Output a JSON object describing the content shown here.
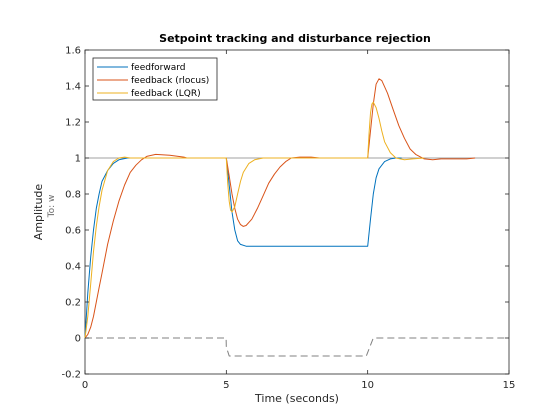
{
  "chart_data": {
    "type": "line",
    "title": "Setpoint tracking and disturbance rejection",
    "xlabel": "Time (seconds)",
    "ylabel": "Amplitude",
    "ylabel_sub": "To: w",
    "xlim": [
      0,
      15
    ],
    "ylim": [
      -0.2,
      1.6
    ],
    "xticks": [
      0,
      5,
      10,
      15
    ],
    "yticks": [
      -0.2,
      0,
      0.2,
      0.4,
      0.6,
      0.8,
      1,
      1.2,
      1.4,
      1.6
    ],
    "grid": false,
    "legend_position": "top-left",
    "reference_lines": [
      {
        "y": 1.0,
        "color": "#a0a0a0",
        "style": "solid"
      }
    ],
    "series": [
      {
        "name": "feedforward",
        "color": "#0072bd",
        "points": [
          [
            0,
            0
          ],
          [
            0.1,
            0.25
          ],
          [
            0.2,
            0.45
          ],
          [
            0.3,
            0.6
          ],
          [
            0.4,
            0.72
          ],
          [
            0.5,
            0.8
          ],
          [
            0.6,
            0.87
          ],
          [
            0.8,
            0.93
          ],
          [
            1.0,
            0.97
          ],
          [
            1.2,
            0.99
          ],
          [
            1.5,
            1.0
          ],
          [
            2.0,
            1.0
          ],
          [
            3.0,
            1.0
          ],
          [
            4.99,
            1.0
          ],
          [
            5.0,
            1.0
          ],
          [
            5.1,
            0.85
          ],
          [
            5.2,
            0.7
          ],
          [
            5.3,
            0.6
          ],
          [
            5.4,
            0.54
          ],
          [
            5.5,
            0.52
          ],
          [
            5.7,
            0.51
          ],
          [
            6.5,
            0.51
          ],
          [
            8.0,
            0.51
          ],
          [
            9.99,
            0.51
          ],
          [
            10.0,
            0.51
          ],
          [
            10.1,
            0.66
          ],
          [
            10.2,
            0.8
          ],
          [
            10.3,
            0.89
          ],
          [
            10.4,
            0.94
          ],
          [
            10.6,
            0.98
          ],
          [
            10.8,
            0.995
          ],
          [
            11.0,
            1.0
          ],
          [
            11.2,
            1.0
          ]
        ]
      },
      {
        "name": "feedback (rlocus)",
        "color": "#d95319",
        "points": [
          [
            0,
            0
          ],
          [
            0.1,
            0.02
          ],
          [
            0.2,
            0.06
          ],
          [
            0.3,
            0.12
          ],
          [
            0.4,
            0.2
          ],
          [
            0.5,
            0.28
          ],
          [
            0.6,
            0.36
          ],
          [
            0.8,
            0.52
          ],
          [
            1.0,
            0.65
          ],
          [
            1.2,
            0.76
          ],
          [
            1.4,
            0.85
          ],
          [
            1.6,
            0.92
          ],
          [
            1.8,
            0.96
          ],
          [
            2.0,
            0.99
          ],
          [
            2.2,
            1.01
          ],
          [
            2.5,
            1.02
          ],
          [
            3.0,
            1.015
          ],
          [
            3.5,
            1.005
          ],
          [
            3.6,
            1.0
          ],
          [
            5.0,
            1.0
          ],
          [
            5.1,
            0.9
          ],
          [
            5.2,
            0.8
          ],
          [
            5.3,
            0.72
          ],
          [
            5.4,
            0.66
          ],
          [
            5.5,
            0.63
          ],
          [
            5.6,
            0.62
          ],
          [
            5.7,
            0.625
          ],
          [
            5.9,
            0.66
          ],
          [
            6.1,
            0.72
          ],
          [
            6.3,
            0.79
          ],
          [
            6.5,
            0.86
          ],
          [
            6.7,
            0.91
          ],
          [
            6.9,
            0.95
          ],
          [
            7.1,
            0.98
          ],
          [
            7.3,
            1.0
          ],
          [
            7.6,
            1.005
          ],
          [
            8.0,
            1.005
          ],
          [
            8.3,
            1.0
          ],
          [
            10.0,
            1.0
          ],
          [
            10.1,
            1.15
          ],
          [
            10.2,
            1.3
          ],
          [
            10.3,
            1.41
          ],
          [
            10.4,
            1.44
          ],
          [
            10.5,
            1.43
          ],
          [
            10.7,
            1.36
          ],
          [
            10.9,
            1.27
          ],
          [
            11.1,
            1.18
          ],
          [
            11.3,
            1.11
          ],
          [
            11.5,
            1.05
          ],
          [
            11.7,
            1.02
          ],
          [
            12.0,
            0.995
          ],
          [
            12.3,
            0.99
          ],
          [
            12.6,
            0.995
          ],
          [
            13.0,
            0.995
          ],
          [
            13.5,
            0.995
          ],
          [
            13.8,
            1.0
          ]
        ]
      },
      {
        "name": "feedback (LQR)",
        "color": "#edb120",
        "points": [
          [
            0,
            0
          ],
          [
            0.1,
            0.12
          ],
          [
            0.2,
            0.3
          ],
          [
            0.3,
            0.48
          ],
          [
            0.4,
            0.62
          ],
          [
            0.5,
            0.73
          ],
          [
            0.6,
            0.82
          ],
          [
            0.8,
            0.93
          ],
          [
            1.0,
            0.98
          ],
          [
            1.2,
            1.0
          ],
          [
            1.4,
            1.005
          ],
          [
            1.6,
            1.0
          ],
          [
            5.0,
            1.0
          ],
          [
            5.05,
            0.86
          ],
          [
            5.1,
            0.76
          ],
          [
            5.15,
            0.71
          ],
          [
            5.2,
            0.7
          ],
          [
            5.3,
            0.73
          ],
          [
            5.4,
            0.8
          ],
          [
            5.5,
            0.87
          ],
          [
            5.6,
            0.92
          ],
          [
            5.8,
            0.97
          ],
          [
            6.0,
            0.99
          ],
          [
            6.3,
            1.0
          ],
          [
            6.6,
            1.0
          ],
          [
            10.0,
            1.0
          ],
          [
            10.05,
            1.14
          ],
          [
            10.1,
            1.25
          ],
          [
            10.15,
            1.3
          ],
          [
            10.2,
            1.31
          ],
          [
            10.3,
            1.28
          ],
          [
            10.4,
            1.22
          ],
          [
            10.5,
            1.15
          ],
          [
            10.6,
            1.09
          ],
          [
            10.8,
            1.03
          ],
          [
            11.0,
            1.0
          ],
          [
            11.3,
            0.99
          ],
          [
            11.6,
            0.995
          ],
          [
            12.0,
            1.0
          ]
        ]
      },
      {
        "name": "",
        "color": "#808080",
        "dashed": true,
        "points": [
          [
            0,
            0
          ],
          [
            4.99,
            0
          ],
          [
            5.0,
            -0.05
          ],
          [
            5.1,
            -0.1
          ],
          [
            9.95,
            -0.1
          ],
          [
            10.1,
            -0.04
          ],
          [
            10.2,
            0
          ],
          [
            15,
            0
          ]
        ]
      }
    ]
  }
}
